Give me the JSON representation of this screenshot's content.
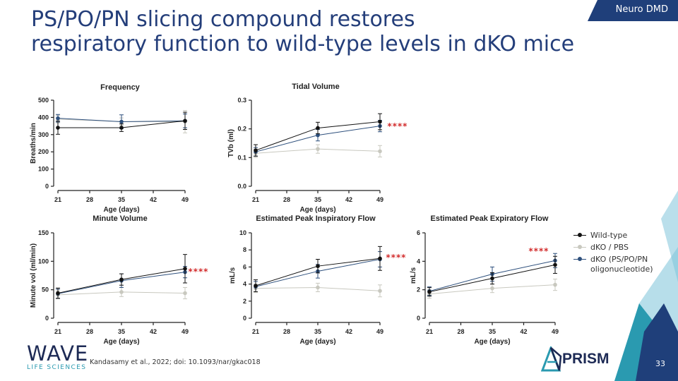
{
  "slide": {
    "title_line1": "PS/PO/PN slicing compound restores",
    "title_line2": "respiratory function to wild-type levels in dKO mice",
    "badge": "Neuro DMD",
    "citation": "Kandasamy et al., 2022; doi: 10.1093/nar/gkac018",
    "page_number": "33",
    "logo_name": "WAVE",
    "logo_sub": "LIFE SCIENCES",
    "prism_logo": "PRISM",
    "colors": {
      "title": "#243e7a",
      "badge": "#1f3f7a",
      "accent_blue": "#2a9ab0",
      "accent_light": "#a9d7e6"
    }
  },
  "legend": [
    {
      "label": "Wild-type",
      "color": "#111111"
    },
    {
      "label": "dKO / PBS",
      "color": "#c8c8bf"
    },
    {
      "label": "dKO (PS/PO/PN oligonucleotide)",
      "color": "#2d4f7c"
    }
  ],
  "chart_data": [
    {
      "type": "line",
      "title": "Frequency",
      "xlabel": "Age (days)",
      "ylabel": "Breaths/min",
      "xlim": [
        21,
        49
      ],
      "xticks": [
        21,
        28,
        35,
        42,
        49
      ],
      "ylim": [
        0,
        500
      ],
      "yticks": [
        0,
        100,
        200,
        300,
        400,
        500
      ],
      "x": [
        21,
        35,
        49
      ],
      "series": [
        {
          "name": "Wild-type",
          "color": "#111111",
          "values": [
            340,
            340,
            380
          ],
          "errors": [
            38,
            22,
            50
          ]
        },
        {
          "name": "dKO / PBS",
          "color": "#c8c8bf",
          "values": [
            390,
            375,
            375
          ],
          "errors": [
            22,
            22,
            65
          ]
        },
        {
          "name": "dKO (PS/PO/PN oligonucleotide)",
          "color": "#2d4f7c",
          "values": [
            395,
            375,
            380
          ],
          "errors": [
            22,
            40,
            40
          ]
        }
      ],
      "annotation": ""
    },
    {
      "type": "line",
      "title": "Tidal Volume",
      "xlabel": "Age (days)",
      "ylabel": "TVb (ml)",
      "xlim": [
        21,
        49
      ],
      "xticks": [
        21,
        28,
        35,
        42,
        49
      ],
      "ylim": [
        0,
        0.3
      ],
      "yticks": [
        "0.0",
        "0.1",
        "0.2",
        "0.3"
      ],
      "x": [
        21,
        35,
        49
      ],
      "series": [
        {
          "name": "Wild-type",
          "color": "#111111",
          "values": [
            0.125,
            0.203,
            0.225
          ],
          "errors": [
            0.02,
            0.02,
            0.028
          ]
        },
        {
          "name": "dKO / PBS",
          "color": "#c8c8bf",
          "values": [
            0.115,
            0.13,
            0.122
          ],
          "errors": [
            0.015,
            0.015,
            0.02
          ]
        },
        {
          "name": "dKO (PS/PO/PN oligonucleotide)",
          "color": "#2d4f7c",
          "values": [
            0.12,
            0.178,
            0.21
          ],
          "errors": [
            0.015,
            0.02,
            0.02
          ]
        }
      ],
      "annotation": "****"
    },
    {
      "type": "line",
      "title": "Minute Volume",
      "xlabel": "Age (days)",
      "ylabel": "Minute vol (ml/min)",
      "xlim": [
        21,
        49
      ],
      "xticks": [
        21,
        28,
        35,
        42,
        49
      ],
      "ylim": [
        0,
        150
      ],
      "yticks": [
        0,
        50,
        100,
        150
      ],
      "x": [
        21,
        35,
        49
      ],
      "series": [
        {
          "name": "Wild-type",
          "color": "#111111",
          "values": [
            44,
            68,
            87
          ],
          "errors": [
            9,
            10,
            25
          ]
        },
        {
          "name": "dKO / PBS",
          "color": "#c8c8bf",
          "values": [
            41,
            46,
            44
          ],
          "errors": [
            7,
            8,
            10
          ]
        },
        {
          "name": "dKO (PS/PO/PN oligonucleotide)",
          "color": "#2d4f7c",
          "values": [
            43,
            66,
            81
          ],
          "errors": [
            8,
            12,
            10
          ]
        }
      ],
      "annotation": "****"
    },
    {
      "type": "line",
      "title": "Estimated Peak Inspiratory Flow",
      "xlabel": "Age (days)",
      "ylabel": "mL/s",
      "xlim": [
        21,
        49
      ],
      "xticks": [
        21,
        28,
        35,
        42,
        49
      ],
      "ylim": [
        0,
        10
      ],
      "yticks": [
        0,
        2,
        4,
        6,
        8,
        10
      ],
      "x": [
        21,
        35,
        49
      ],
      "series": [
        {
          "name": "Wild-type",
          "color": "#111111",
          "values": [
            3.8,
            6.1,
            7.0
          ],
          "errors": [
            0.7,
            0.8,
            1.4
          ]
        },
        {
          "name": "dKO / PBS",
          "color": "#c8c8bf",
          "values": [
            3.5,
            3.6,
            3.2
          ],
          "errors": [
            0.5,
            0.5,
            0.7
          ]
        },
        {
          "name": "dKO (PS/PO/PN oligonucleotide)",
          "color": "#2d4f7c",
          "values": [
            3.7,
            5.5,
            6.9
          ],
          "errors": [
            0.6,
            0.8,
            0.9
          ]
        }
      ],
      "annotation": "****"
    },
    {
      "type": "line",
      "title": "Estimated Peak Expiratory Flow",
      "xlabel": "Age (days)",
      "ylabel": "mL/s",
      "xlim": [
        21,
        49
      ],
      "xticks": [
        21,
        28,
        35,
        42,
        49
      ],
      "ylim": [
        0,
        6
      ],
      "yticks": [
        0,
        2,
        4,
        6
      ],
      "x": [
        21,
        35,
        49
      ],
      "series": [
        {
          "name": "Wild-type",
          "color": "#111111",
          "values": [
            1.85,
            2.8,
            3.75
          ],
          "errors": [
            0.3,
            0.4,
            0.6
          ]
        },
        {
          "name": "dKO / PBS",
          "color": "#c8c8bf",
          "values": [
            1.7,
            2.1,
            2.35
          ],
          "errors": [
            0.3,
            0.3,
            0.4
          ]
        },
        {
          "name": "dKO (PS/PO/PN oligonucleotide)",
          "color": "#2d4f7c",
          "values": [
            1.9,
            3.1,
            4.05
          ],
          "errors": [
            0.3,
            0.5,
            0.5
          ]
        }
      ],
      "annotation": "****"
    }
  ]
}
